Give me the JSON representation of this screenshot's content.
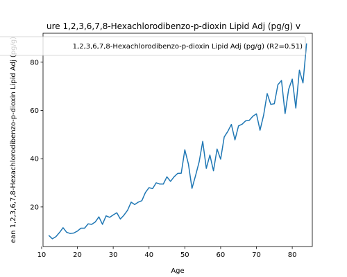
{
  "chart_data": {
    "type": "line",
    "title": "ure 1,2,3,6,7,8-Hexachlorodibenzo-p-dioxin Lipid Adj (pg/g) v",
    "xlabel": "Age",
    "ylabel": "ean 1,2,3,6,7,8-Hexachlorodibenzo-p-dioxin Lipid Adj (pg/g)",
    "xlim": [
      10.4,
      85.6
    ],
    "ylim": [
      3.6,
      92.0
    ],
    "xticks": [
      10,
      20,
      30,
      40,
      50,
      60,
      70,
      80
    ],
    "yticks": [
      20,
      40,
      60,
      80
    ],
    "legend_position": "top-center",
    "grid": false,
    "series": [
      {
        "name": "1,2,3,6,7,8-Hexachlorodibenzo-p-dioxin Lipid Adj (pg/g) (R2=0.51)",
        "color": "#1f77b4",
        "x": [
          12,
          13,
          14,
          15,
          16,
          17,
          18,
          19,
          20,
          21,
          22,
          23,
          24,
          25,
          26,
          27,
          28,
          29,
          30,
          31,
          32,
          33,
          34,
          35,
          36,
          37,
          38,
          39,
          40,
          41,
          42,
          43,
          44,
          45,
          46,
          47,
          48,
          49,
          50,
          51,
          52,
          53,
          54,
          55,
          56,
          57,
          58,
          59,
          60,
          61,
          62,
          63,
          64,
          65,
          66,
          67,
          68,
          69,
          70,
          71,
          72,
          73,
          74,
          75,
          76,
          77,
          78,
          79,
          80,
          81,
          82,
          83,
          84
        ],
        "values": [
          8.2,
          6.8,
          7.7,
          9.4,
          11.4,
          9.5,
          9.0,
          9.2,
          10.0,
          11.2,
          11.2,
          13.0,
          12.8,
          13.8,
          15.9,
          12.8,
          16.3,
          15.7,
          16.7,
          17.6,
          15.0,
          16.6,
          18.6,
          22.0,
          21.0,
          22.0,
          22.6,
          26.0,
          28.0,
          27.6,
          30.0,
          29.5,
          29.5,
          32.5,
          30.6,
          32.5,
          33.9,
          34.0,
          43.7,
          37.8,
          27.7,
          33.0,
          38.7,
          47.2,
          36.0,
          41.5,
          35.0,
          44.0,
          39.8,
          49.0,
          51.3,
          54.2,
          47.8,
          53.6,
          54.3,
          55.7,
          55.9,
          57.6,
          58.6,
          51.8,
          58.0,
          67.0,
          62.5,
          62.8,
          70.7,
          72.4,
          58.7,
          68.8,
          73.0,
          61.0,
          76.7,
          71.4,
          87.8
        ]
      }
    ]
  }
}
